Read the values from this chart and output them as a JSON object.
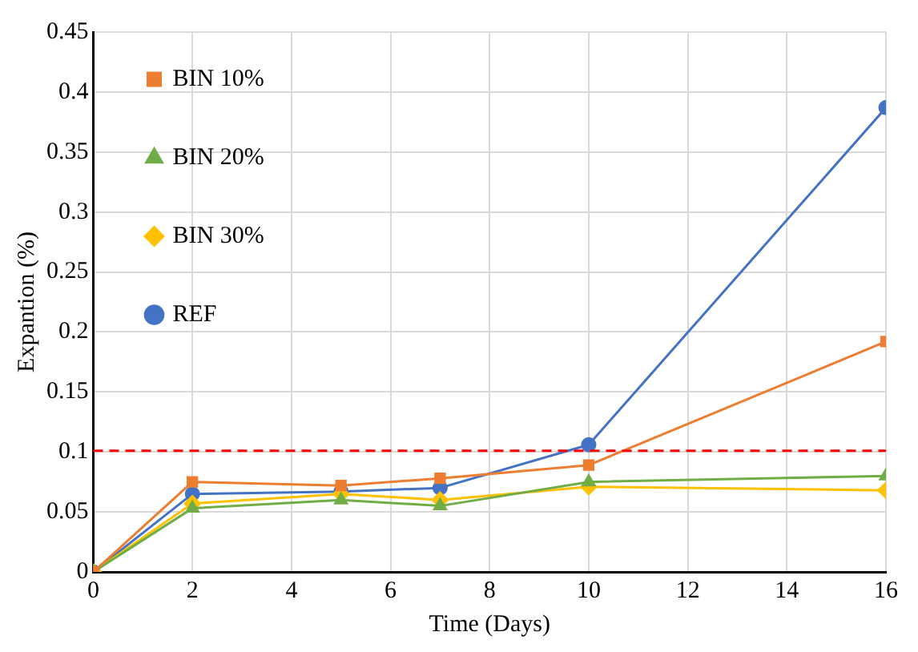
{
  "chart_data": {
    "type": "line",
    "xlabel": "Time (Days)",
    "ylabel": "Expantion (%)",
    "xlim": [
      0,
      16
    ],
    "xticks": [
      0,
      2,
      4,
      6,
      8,
      10,
      12,
      14,
      16
    ],
    "ylim": [
      0,
      0.45
    ],
    "yticks": [
      0,
      0.05,
      0.1,
      0.15,
      0.2,
      0.25,
      0.3,
      0.35,
      0.4,
      0.45
    ],
    "grid": true,
    "legend": "top left",
    "line_style": "solid",
    "series": [
      {
        "name": "BIN 10%",
        "color": "#ed7d31",
        "marker": "square",
        "x": [
          0,
          2,
          5,
          7,
          10,
          16
        ],
        "values": [
          0,
          0.075,
          0.072,
          0.078,
          0.089,
          0.192
        ]
      },
      {
        "name": "BIN 20%",
        "color": "#70ad47",
        "marker": "triangle",
        "x": [
          0,
          2,
          5,
          7,
          10,
          16
        ],
        "values": [
          0,
          0.053,
          0.06,
          0.055,
          0.075,
          0.08
        ]
      },
      {
        "name": "BIN 30%",
        "color": "#ffc000",
        "marker": "diamond",
        "x": [
          0,
          2,
          5,
          7,
          10,
          16
        ],
        "values": [
          0,
          0.057,
          0.065,
          0.06,
          0.071,
          0.068
        ]
      },
      {
        "name": "REF",
        "color": "#4472c4",
        "marker": "circle",
        "x": [
          0,
          2,
          5,
          7,
          10,
          16
        ],
        "values": [
          0,
          0.065,
          0.067,
          0.07,
          0.106,
          0.387
        ]
      }
    ],
    "ref_lines": [
      {
        "axis": "y",
        "value": 0.101,
        "color": "#ff0000",
        "line_style": "dashed"
      }
    ]
  }
}
